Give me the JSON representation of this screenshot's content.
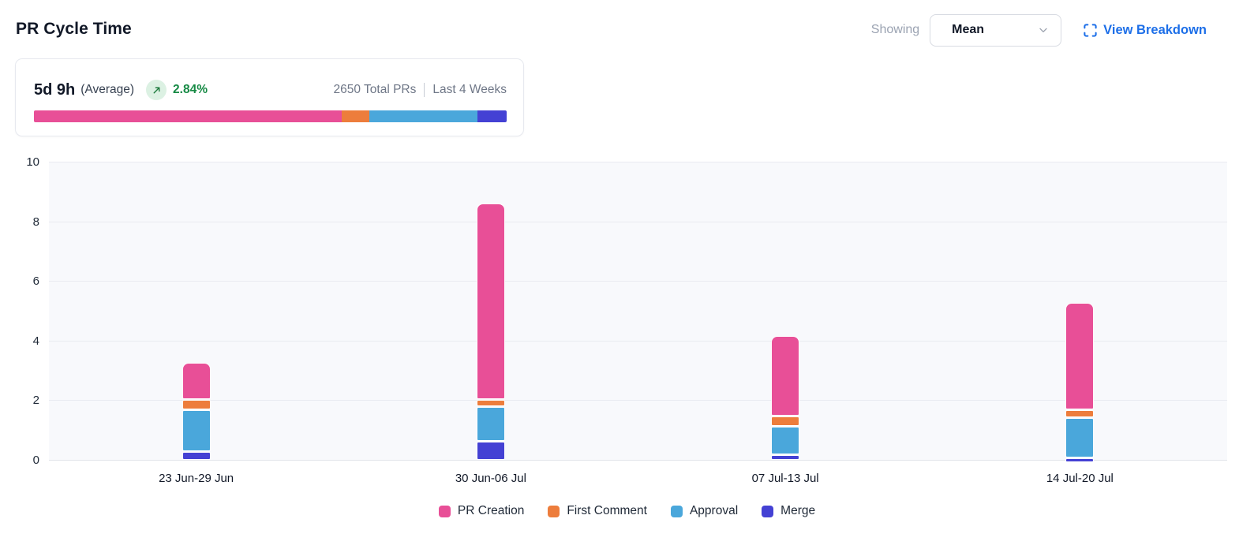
{
  "header": {
    "title": "PR Cycle Time",
    "showing_label": "Showing",
    "metric_select": {
      "value": "Mean"
    },
    "view_breakdown_label": "View Breakdown",
    "link_color": "#1D6FE8"
  },
  "summary": {
    "value": "5d 9h",
    "value_suffix": "(Average)",
    "trend": {
      "direction": "up",
      "percent": "2.84%",
      "color": "#178A45",
      "badge_bg": "#DCF1E3"
    },
    "total_prs": "2650 Total PRs",
    "period": "Last 4 Weeks",
    "distribution_pct": [
      65.1,
      5.9,
      22.9,
      6.1
    ]
  },
  "chart_data": {
    "type": "bar",
    "stacked": true,
    "title": "PR Cycle Time",
    "xlabel": "",
    "ylabel": "",
    "ylim": [
      0,
      10
    ],
    "yticks": [
      0,
      2,
      4,
      6,
      8,
      10
    ],
    "grid": true,
    "legend_position": "bottom",
    "categories": [
      "23 Jun-29 Jun",
      "30 Jun-06 Jul",
      "07 Jul-13 Jul",
      "14 Jul-20 Jul"
    ],
    "series": [
      {
        "name": "PR Creation",
        "color": "#E84F97",
        "values": [
          1.25,
          6.6,
          2.7,
          3.6
        ]
      },
      {
        "name": "First Comment",
        "color": "#ED7D3C",
        "values": [
          0.35,
          0.25,
          0.35,
          0.26
        ]
      },
      {
        "name": "Approval",
        "color": "#4AA7DB",
        "values": [
          1.4,
          1.15,
          0.95,
          1.35
        ]
      },
      {
        "name": "Merge",
        "color": "#4441D4",
        "values": [
          0.3,
          0.65,
          0.2,
          0.1
        ]
      }
    ],
    "stack_bottom_to_top": [
      "Merge",
      "Approval",
      "First Comment",
      "PR Creation"
    ],
    "totals": [
      3.3,
      8.65,
      4.2,
      5.31
    ],
    "plot_bg": "#F8F9FC"
  }
}
